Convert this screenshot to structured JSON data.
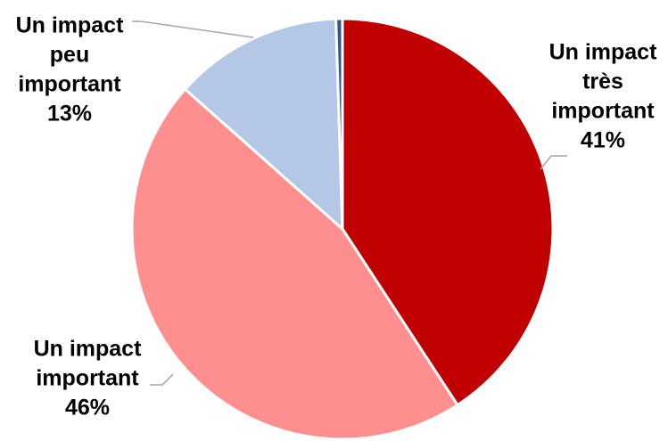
{
  "chart_data": {
    "type": "pie",
    "title": "",
    "slices": [
      {
        "label": "Un impact très important",
        "label_lines": [
          "Un impact",
          "très",
          "important"
        ],
        "value": 41,
        "value_label": "41%",
        "color": "#c00000"
      },
      {
        "label": "Un impact important",
        "label_lines": [
          "Un impact",
          "important"
        ],
        "value": 46,
        "value_label": "46%",
        "color": "#ff8f8f"
      },
      {
        "label": "Un impact peu important",
        "label_lines": [
          "Un impact",
          "peu",
          "important"
        ],
        "value": 13,
        "value_label": "13%",
        "color": "#b4c7e7"
      },
      {
        "label": "",
        "label_lines": [],
        "value": 0.5,
        "value_label": "",
        "color": "#2f5597"
      }
    ],
    "start_angle_deg": 0,
    "direction": "clockwise",
    "legend": "none"
  }
}
